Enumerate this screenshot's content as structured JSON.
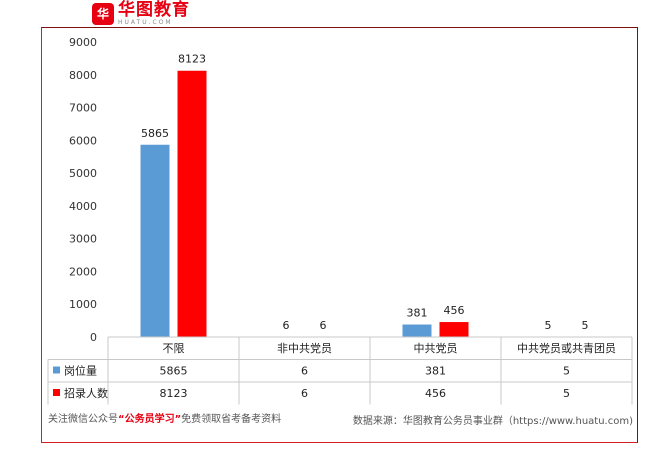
{
  "logo": {
    "badge": "华",
    "name_cn": "华图教育",
    "name_en": "HUATU.COM"
  },
  "chart_data": {
    "type": "bar",
    "categories": [
      "不限",
      "非中共党员",
      "中共党员",
      "中共党员或共青团员"
    ],
    "series": [
      {
        "name": "岗位量",
        "values": [
          5865,
          6,
          381,
          5
        ],
        "color": "#5b9bd5"
      },
      {
        "name": "招录人数",
        "values": [
          8123,
          6,
          456,
          5
        ],
        "color": "#ff0000"
      }
    ],
    "yticks": [
      "9000",
      "8000",
      "7000",
      "6000",
      "5000",
      "4000",
      "3000",
      "2000",
      "1000",
      "0"
    ],
    "ylim": [
      0,
      9000
    ],
    "data_labels": [
      [
        "5865",
        "6",
        "381",
        "5"
      ],
      [
        "8123",
        "6",
        "456",
        "5"
      ]
    ],
    "table_rows": [
      {
        "label": "岗位量",
        "cells": [
          "5865",
          "6",
          "381",
          "5"
        ]
      },
      {
        "label": "招录人数",
        "cells": [
          "8123",
          "6",
          "456",
          "5"
        ]
      }
    ],
    "legend_placement": "data-table",
    "grid": false
  },
  "footer": {
    "left_prefix": "关注微信公众号",
    "left_highlight": "“公务员学习”",
    "left_suffix": "免费领取省考备考资料",
    "right": "数据来源：华图教育公务员事业群（https://www.huatu.com)"
  }
}
